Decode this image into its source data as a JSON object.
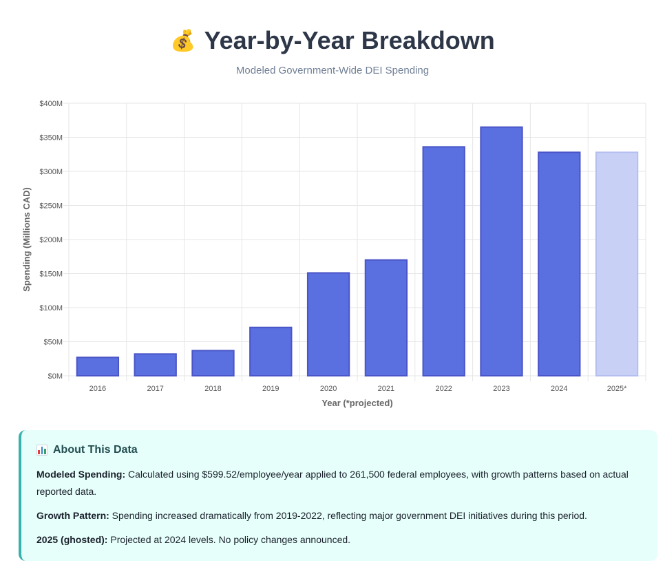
{
  "header": {
    "emoji": "💰",
    "title": "Year-by-Year Breakdown",
    "subtitle": "Modeled Government-Wide DEI Spending"
  },
  "chart_data": {
    "type": "bar",
    "categories": [
      "2016",
      "2017",
      "2018",
      "2019",
      "2020",
      "2021",
      "2022",
      "2023",
      "2024",
      "2025*"
    ],
    "values": [
      27,
      32,
      37,
      71,
      151,
      170,
      336,
      365,
      328,
      328
    ],
    "projected": [
      false,
      false,
      false,
      false,
      false,
      false,
      false,
      false,
      false,
      true
    ],
    "xlabel": "Year (*projected)",
    "ylabel": "Spending (Millions CAD)",
    "ylim": [
      0,
      400
    ],
    "yticks": [
      0,
      50,
      100,
      150,
      200,
      250,
      300,
      350,
      400
    ],
    "ytick_labels": [
      "$0M",
      "$50M",
      "$100M",
      "$150M",
      "$200M",
      "$250M",
      "$300M",
      "$350M",
      "$400M"
    ],
    "grid": true,
    "colors": {
      "bar": "#5a6fe0",
      "bar_border": "#4a55c7",
      "projected_bar": "#c9d0f5",
      "projected_border": "#b4bff0",
      "grid": "#e6e6e6"
    }
  },
  "info": {
    "icon": "bar-chart-icon",
    "heading": "About This Data",
    "items": [
      {
        "label": "Modeled Spending:",
        "text": " Calculated using $599.52/employee/year applied to 261,500 federal employees, with growth patterns based on actual reported data."
      },
      {
        "label": "Growth Pattern:",
        "text": " Spending increased dramatically from 2019-2022, reflecting major government DEI initiatives during this period."
      },
      {
        "label": "2025 (ghosted):",
        "text": " Projected at 2024 levels. No policy changes announced."
      }
    ]
  }
}
